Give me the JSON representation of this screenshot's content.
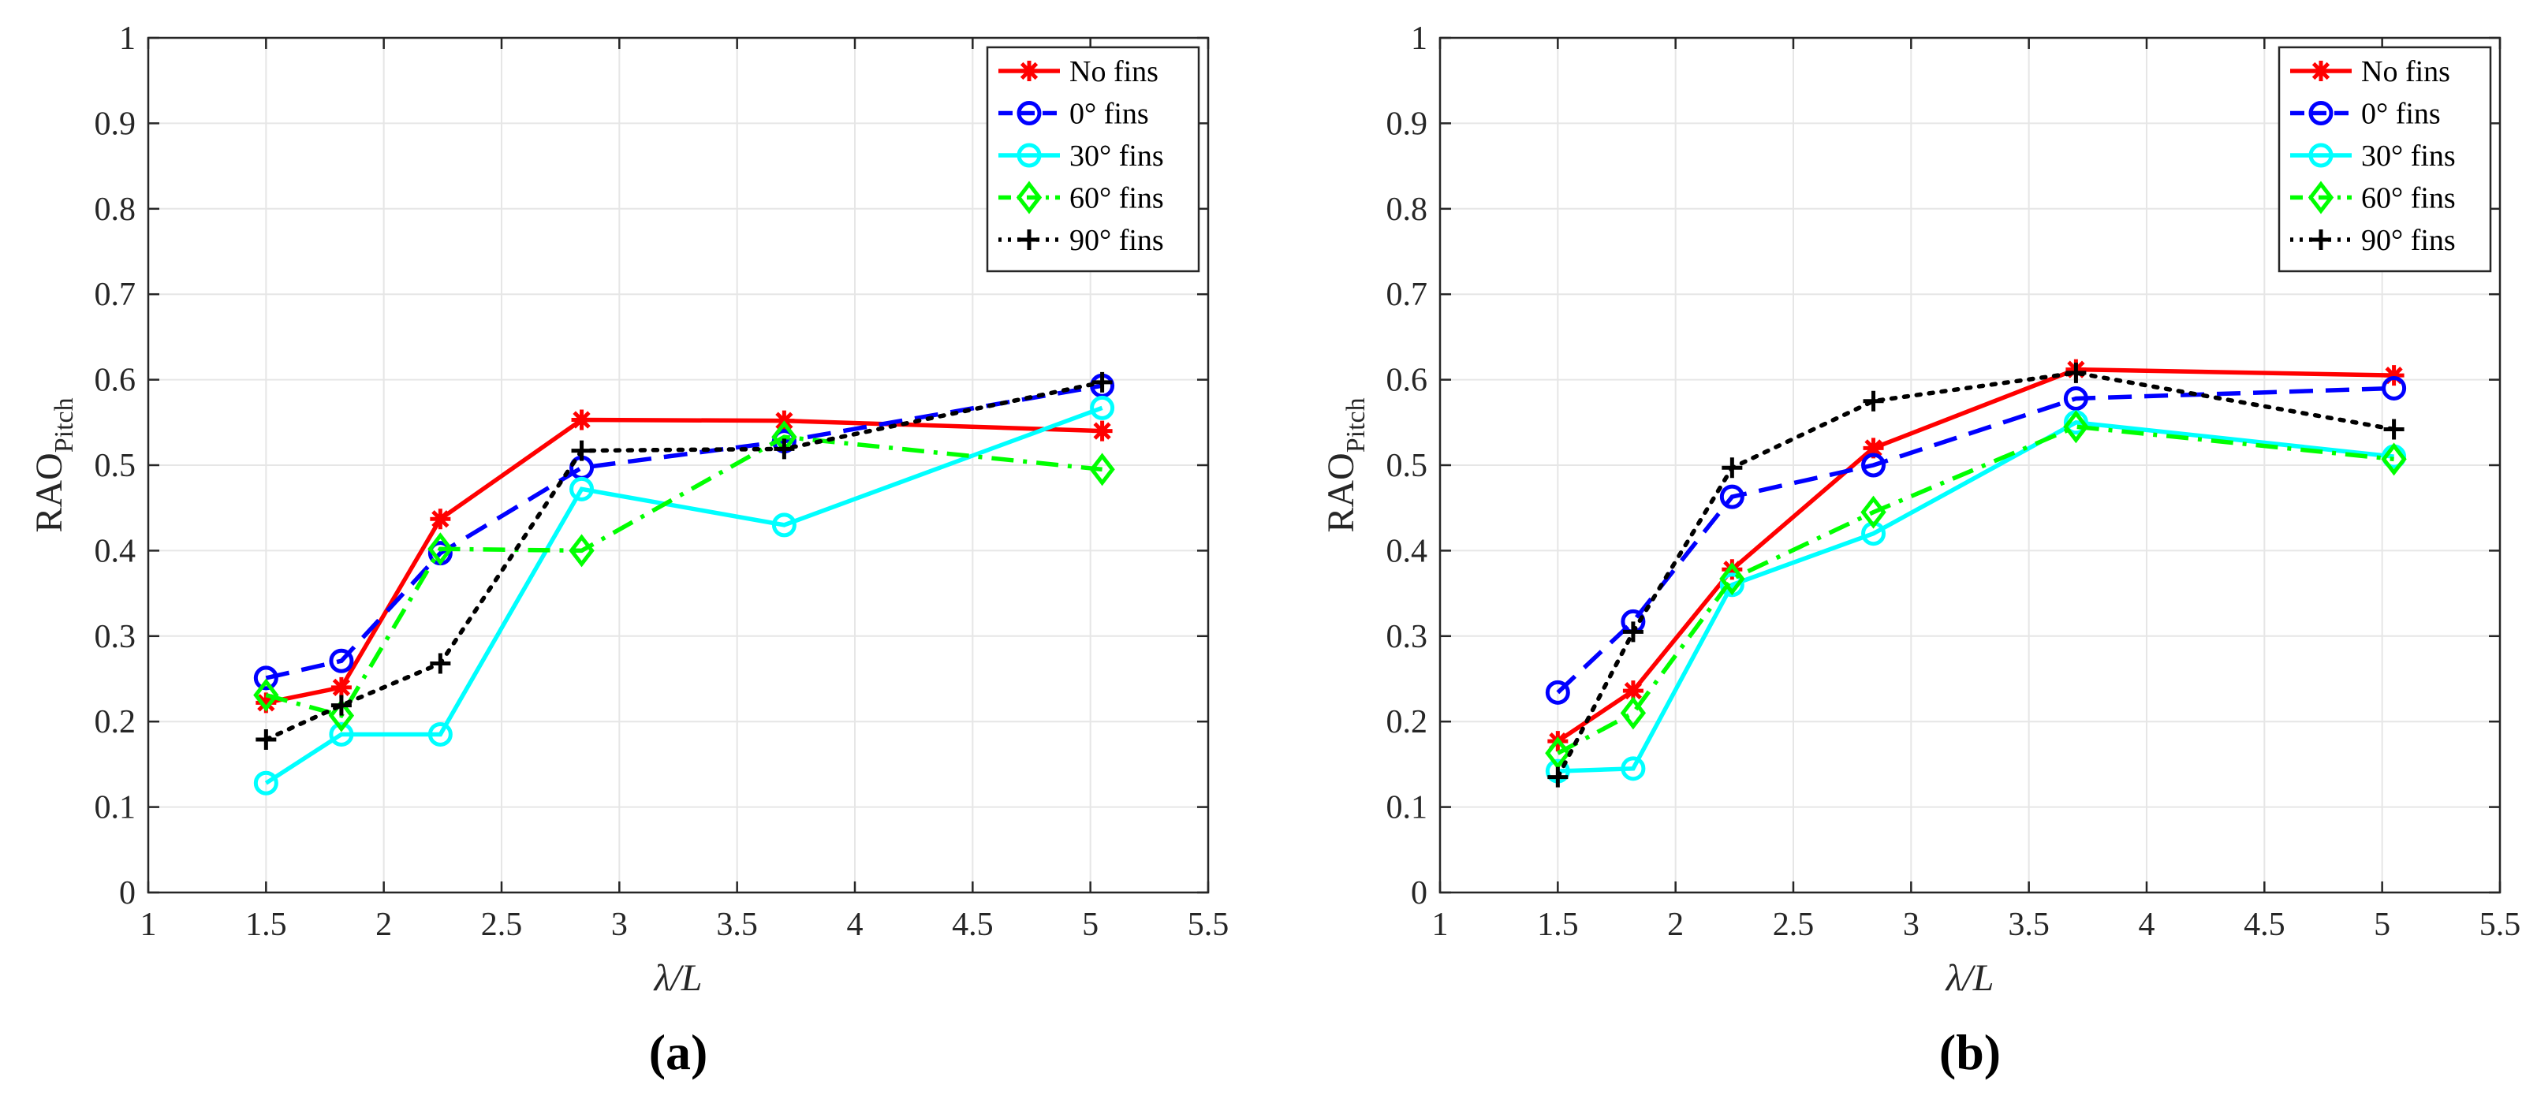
{
  "chart_data": [
    {
      "type": "line",
      "panel_label": "(a)",
      "xlabel": "λ/L",
      "ylabel_main": "RAO",
      "ylabel_sub": "Pitch",
      "xlim": [
        1,
        5.5
      ],
      "ylim": [
        0,
        1
      ],
      "xticks": [
        "1",
        "1.5",
        "2",
        "2.5",
        "3",
        "3.5",
        "4",
        "4.5",
        "5",
        "5.5"
      ],
      "yticks": [
        "0",
        "0.1",
        "0.2",
        "0.3",
        "0.4",
        "0.5",
        "0.6",
        "0.7",
        "0.8",
        "0.9",
        "1"
      ],
      "grid": true,
      "legend_position": "top-right",
      "series": [
        {
          "name": "No fins",
          "color": "#ff0000",
          "dash": "solid",
          "marker": "asterisk",
          "x": [
            1.5,
            1.82,
            2.24,
            2.84,
            3.7,
            5.05
          ],
          "y": [
            0.222,
            0.24,
            0.437,
            0.553,
            0.552,
            0.54
          ]
        },
        {
          "name": "0° fins",
          "color": "#0000ff",
          "dash": "dashed",
          "marker": "circle",
          "x": [
            1.5,
            1.82,
            2.24,
            2.84,
            3.7,
            5.05
          ],
          "y": [
            0.251,
            0.271,
            0.397,
            0.497,
            0.528,
            0.593
          ]
        },
        {
          "name": "30° fins",
          "color": "#00ffff",
          "dash": "solid",
          "marker": "circle",
          "x": [
            1.5,
            1.82,
            2.24,
            2.84,
            3.7,
            5.05
          ],
          "y": [
            0.128,
            0.185,
            0.185,
            0.472,
            0.43,
            0.567
          ]
        },
        {
          "name": "60° fins",
          "color": "#00ff00",
          "dash": "dashdot",
          "marker": "diamond",
          "x": [
            1.5,
            1.82,
            2.24,
            2.84,
            3.7,
            5.05
          ],
          "y": [
            0.231,
            0.207,
            0.402,
            0.4,
            0.533,
            0.495
          ]
        },
        {
          "name": "90° fins",
          "color": "#000000",
          "dash": "dotted",
          "marker": "plus",
          "x": [
            1.5,
            1.82,
            2.24,
            2.84,
            3.7,
            5.05
          ],
          "y": [
            0.179,
            0.219,
            0.268,
            0.517,
            0.519,
            0.597
          ]
        }
      ]
    },
    {
      "type": "line",
      "panel_label": "(b)",
      "xlabel": "λ/L",
      "ylabel_main": "RAO",
      "ylabel_sub": "Pitch",
      "xlim": [
        1,
        5.5
      ],
      "ylim": [
        0,
        1
      ],
      "xticks": [
        "1",
        "1.5",
        "2",
        "2.5",
        "3",
        "3.5",
        "4",
        "4.5",
        "5",
        "5.5"
      ],
      "yticks": [
        "0",
        "0.1",
        "0.2",
        "0.3",
        "0.4",
        "0.5",
        "0.6",
        "0.7",
        "0.8",
        "0.9",
        "1"
      ],
      "grid": true,
      "legend_position": "top-right",
      "series": [
        {
          "name": "No fins",
          "color": "#ff0000",
          "dash": "solid",
          "marker": "asterisk",
          "x": [
            1.5,
            1.82,
            2.24,
            2.84,
            3.7,
            5.05
          ],
          "y": [
            0.177,
            0.236,
            0.378,
            0.52,
            0.612,
            0.605
          ]
        },
        {
          "name": "0° fins",
          "color": "#0000ff",
          "dash": "dashed",
          "marker": "circle",
          "x": [
            1.5,
            1.82,
            2.24,
            2.84,
            3.7,
            5.05
          ],
          "y": [
            0.234,
            0.317,
            0.463,
            0.5,
            0.578,
            0.59
          ]
        },
        {
          "name": "30° fins",
          "color": "#00ffff",
          "dash": "solid",
          "marker": "circle",
          "x": [
            1.5,
            1.82,
            2.24,
            2.84,
            3.7,
            5.05
          ],
          "y": [
            0.142,
            0.145,
            0.36,
            0.42,
            0.55,
            0.51
          ]
        },
        {
          "name": "60° fins",
          "color": "#00ff00",
          "dash": "dashdot",
          "marker": "diamond",
          "x": [
            1.5,
            1.82,
            2.24,
            2.84,
            3.7,
            5.05
          ],
          "y": [
            0.163,
            0.21,
            0.367,
            0.445,
            0.545,
            0.507
          ]
        },
        {
          "name": "90° fins",
          "color": "#000000",
          "dash": "dotted",
          "marker": "plus",
          "x": [
            1.5,
            1.82,
            2.24,
            2.84,
            3.7,
            5.05
          ],
          "y": [
            0.135,
            0.305,
            0.497,
            0.575,
            0.608,
            0.542
          ]
        }
      ]
    }
  ]
}
